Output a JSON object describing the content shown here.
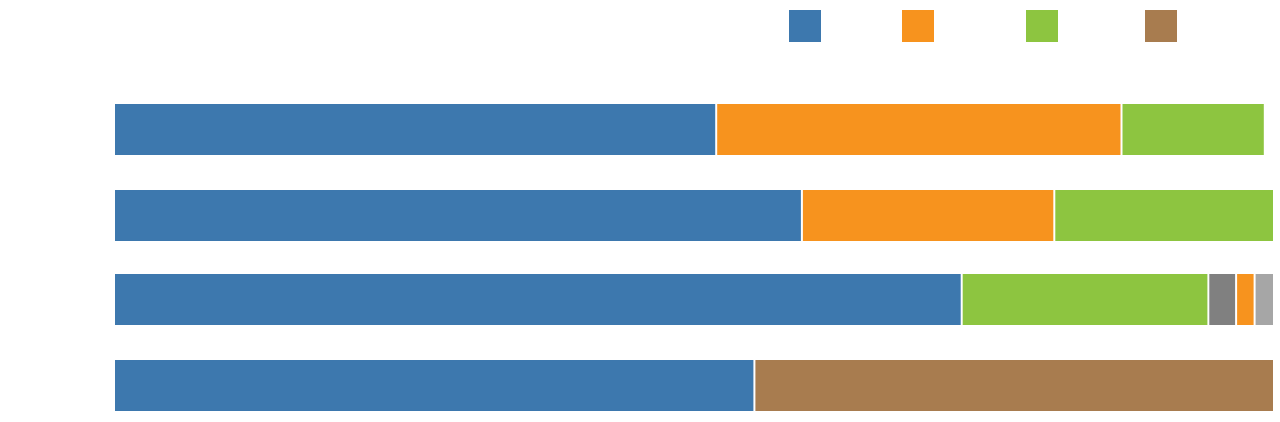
{
  "chart_data": {
    "type": "bar",
    "orientation": "horizontal",
    "stacked": true,
    "title": "",
    "xlabel": "",
    "ylabel": "",
    "categories": [
      "",
      "",
      "",
      ""
    ],
    "xlim": [
      0,
      100
    ],
    "grid": false,
    "legend_position": "top",
    "series": [
      {
        "color": "#3d78ae",
        "values": [
          52.0,
          59.4,
          73.2,
          55.3
        ]
      },
      {
        "color": "#f7931e",
        "values": [
          35.0,
          21.8,
          1.6,
          0.0
        ]
      },
      {
        "color": "#8dc540",
        "values": [
          12.2,
          18.8,
          21.3,
          0.0
        ]
      },
      {
        "color": "#a87c4f",
        "values": [
          0.0,
          0.0,
          0.0,
          44.7
        ]
      },
      {
        "color": "#808080",
        "values": [
          0.0,
          0.0,
          2.4,
          0.0
        ]
      },
      {
        "color": "#a6a6a6",
        "values": [
          0.0,
          0.0,
          1.5,
          0.0
        ]
      }
    ],
    "segment_order": [
      [
        0,
        1,
        2
      ],
      [
        0,
        1,
        2
      ],
      [
        0,
        2,
        4,
        1,
        5
      ],
      [
        0,
        3
      ]
    ],
    "legend": [
      {
        "series_index": 0
      },
      {
        "series_index": 1
      },
      {
        "series_index": 2
      },
      {
        "series_index": 3
      }
    ]
  }
}
